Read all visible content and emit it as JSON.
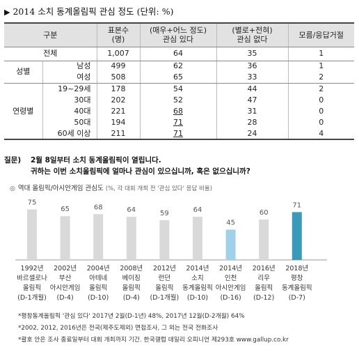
{
  "title": "2014 소치 동계올림픽 관심 정도 (단위: %)",
  "table": {
    "headers": {
      "group": "구분",
      "sample": [
        "표본수",
        "(명)"
      ],
      "interested": [
        "(매우+어느 정도)",
        "관심 있다"
      ],
      "not_interested": [
        "(별로+전혀)",
        "관심 없다"
      ],
      "unknown": "모름/응답거절"
    },
    "total": {
      "label": "전체",
      "n": "1,007",
      "yes": "64",
      "no": "35",
      "dk": "1"
    },
    "groups": [
      {
        "label": "성별",
        "rows": [
          {
            "label": "남성",
            "n": "499",
            "yes": "62",
            "no": "36",
            "dk": "1"
          },
          {
            "label": "여성",
            "n": "508",
            "yes": "65",
            "no": "33",
            "dk": "2"
          }
        ]
      },
      {
        "label": "연령별",
        "rows": [
          {
            "label": "19~29세",
            "n": "178",
            "yes": "54",
            "no": "44",
            "dk": "2"
          },
          {
            "label": "30대",
            "n": "202",
            "yes": "52",
            "no": "47",
            "dk": "0"
          },
          {
            "label": "40대",
            "n": "221",
            "yes": "68",
            "no": "31",
            "dk": "0",
            "yes_underline": true
          },
          {
            "label": "50대",
            "n": "194",
            "yes": "71",
            "no": "28",
            "dk": "0",
            "yes_underline": true
          },
          {
            "label": "60세 이상",
            "n": "211",
            "yes": "71",
            "no": "24",
            "dk": "4",
            "yes_underline": true
          }
        ]
      }
    ]
  },
  "question": {
    "label": "질문)",
    "line1": "2월 8일부터 소치 동계올림픽이 열립니다.",
    "line2": "귀하는 이번 소치올림픽에 얼마나 관심이 있으십니까, 혹은 없으십니까?"
  },
  "chart_subtitle": {
    "mark": "◎",
    "main": "역대 올림픽/아시안게임 관심도",
    "desc": "(%, 각 대회 개최 전 '관심 있다' 응답 비율)"
  },
  "chart_data": {
    "type": "bar",
    "title": "역대 올림픽/아시안게임 관심도",
    "categories": [
      [
        "1992년",
        "바르셀로나",
        "올림픽",
        "(D-1개월)"
      ],
      [
        "2002년",
        "부산",
        "아시안게임",
        "(D-4)"
      ],
      [
        "2004년",
        "아테네",
        "올림픽",
        "(D-10)"
      ],
      [
        "2008년",
        "베이징",
        "올림픽",
        "(D-4)"
      ],
      [
        "2012년",
        "런던",
        "올림픽",
        "(D-1개월)"
      ],
      [
        "2014년",
        "소치",
        "동계올림픽",
        "(D-10)"
      ],
      [
        "2014년",
        "인천",
        "아시안게임",
        "(D-16)"
      ],
      [
        "2016년",
        "리우",
        "올림픽",
        "(D-12)"
      ],
      [
        "2018년",
        "평창",
        "동계올림픽",
        "(D-7)"
      ]
    ],
    "values": [
      75,
      65,
      68,
      64,
      59,
      64,
      45,
      60,
      71
    ],
    "highlight": [
      null,
      null,
      null,
      null,
      null,
      null,
      "light-blue",
      null,
      "teal"
    ],
    "ylim": [
      0,
      90
    ],
    "colors": {
      "default": "#d9d9d9",
      "light-blue": "#9fd2e8",
      "teal": "#3a9ab8"
    }
  },
  "notes": [
    "*평창동계올림픽 '관심 있다' 2017년 2월(D-1년) 48%, 2017년 12월(D-2개월) 64%",
    "*2002, 2012, 2016년은 전국(제주도제외) 면접조사, 그 외는 전국 전화조사",
    "*괄호 안은 조사 종료일부터 대회 개최까지 기간. 한국갤럽 데일리 오피니언 제293호 www.gallup.co.kr"
  ]
}
